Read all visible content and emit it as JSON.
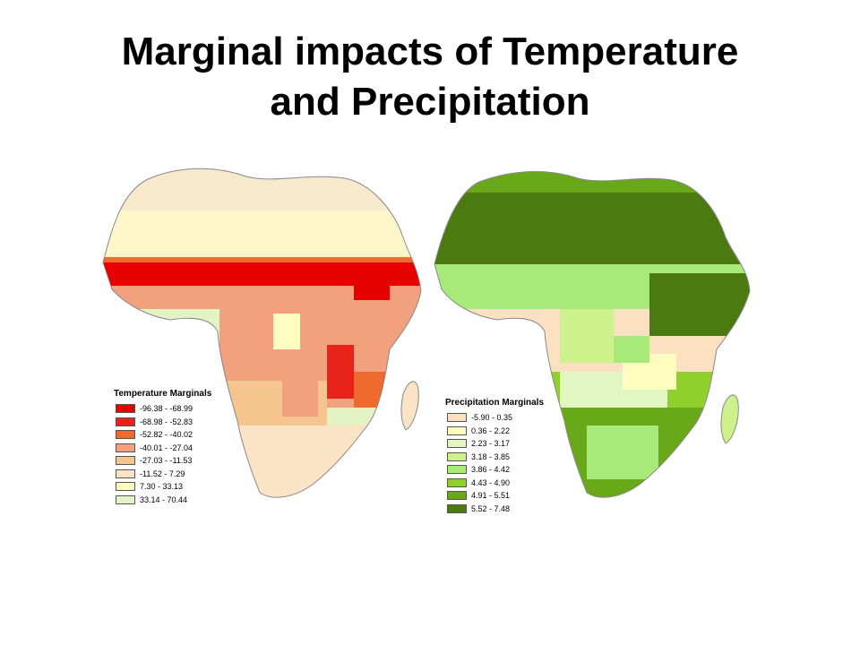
{
  "title": {
    "line1": "Marginal impacts of Temperature",
    "line2": "and Precipitation"
  },
  "maps": {
    "temperature": {
      "legend_title": "Temperature Marginals",
      "classes": [
        {
          "label": "-96.38 - -68.99",
          "color": "#e60000"
        },
        {
          "label": "-68.98 - -52.83",
          "color": "#e8231a"
        },
        {
          "label": "-52.82 - -40.02",
          "color": "#ee6a2f"
        },
        {
          "label": "-40.01 - -27.04",
          "color": "#f3a07f"
        },
        {
          "label": "-27.03 - -11.53",
          "color": "#f6c48e"
        },
        {
          "label": "-11.52 - 7.29",
          "color": "#fbe3c6"
        },
        {
          "label": "7.30 - 33.13",
          "color": "#fffcc0"
        },
        {
          "label": "33.14 - 70.44",
          "color": "#e3f3c4"
        }
      ]
    },
    "precipitation": {
      "legend_title": "Precipitation Marginals",
      "classes": [
        {
          "label": "-5.90 - 0.35",
          "color": "#fbe0c2"
        },
        {
          "label": "0.36 - 2.22",
          "color": "#fffcc0"
        },
        {
          "label": "2.23 - 3.17",
          "color": "#e2f6c2"
        },
        {
          "label": "3.18 - 3.85",
          "color": "#cdf28c"
        },
        {
          "label": "3.86 - 4.42",
          "color": "#a8ea7a"
        },
        {
          "label": "4.43 - 4.90",
          "color": "#8fd02c"
        },
        {
          "label": "4.91 - 5.51",
          "color": "#69a818"
        },
        {
          "label": "5.52 - 7.48",
          "color": "#4a7a10"
        }
      ]
    }
  }
}
